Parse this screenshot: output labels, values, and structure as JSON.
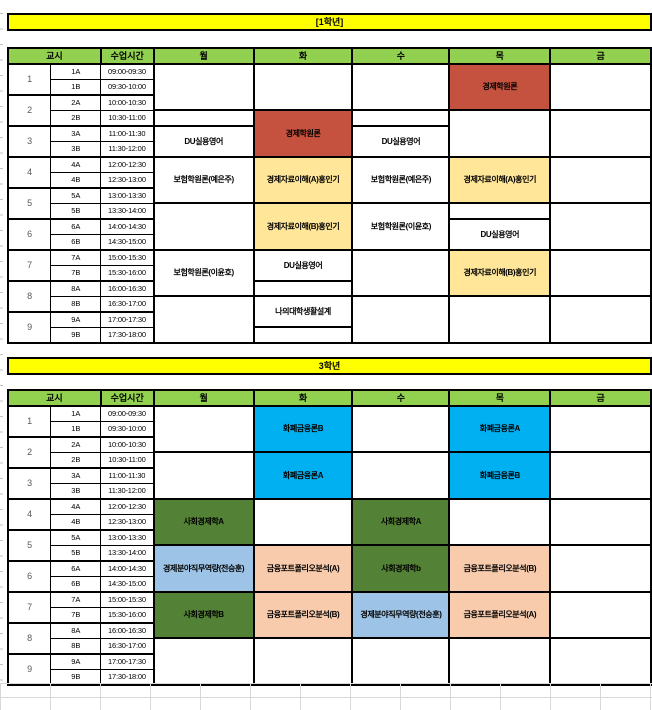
{
  "colors": {
    "banner_yellow": "#FFFF00",
    "header_green": "#92D050",
    "red": "#C5523E",
    "light_yellow": "#FFE699",
    "cyan": "#00B0F0",
    "dark_green": "#538135",
    "light_blue": "#9DC3E6",
    "peach": "#F8CBAD",
    "gridline_gray": "#D9D9D9"
  },
  "banners": {
    "grade1": "[1학년]",
    "grade3": "3학년"
  },
  "headers": {
    "period": "교시",
    "time": "수업시간",
    "days": [
      "월",
      "화",
      "수",
      "목",
      "금"
    ]
  },
  "rows": [
    {
      "period": "1",
      "code": "1A",
      "time": "09:00-09:30"
    },
    {
      "period": "",
      "code": "1B",
      "time": "09:30-10:00"
    },
    {
      "period": "2",
      "code": "2A",
      "time": "10:00-10:30"
    },
    {
      "period": "",
      "code": "2B",
      "time": "10:30-11:00"
    },
    {
      "period": "3",
      "code": "3A",
      "time": "11:00-11:30"
    },
    {
      "period": "",
      "code": "3B",
      "time": "11:30-12:00"
    },
    {
      "period": "4",
      "code": "4A",
      "time": "12:00-12:30"
    },
    {
      "period": "",
      "code": "4B",
      "time": "12:30-13:00"
    },
    {
      "period": "5",
      "code": "5A",
      "time": "13:00-13:30"
    },
    {
      "period": "",
      "code": "5B",
      "time": "13:30-14:00"
    },
    {
      "period": "6",
      "code": "6A",
      "time": "14:00-14:30"
    },
    {
      "period": "",
      "code": "6B",
      "time": "14:30-15:00"
    },
    {
      "period": "7",
      "code": "7A",
      "time": "15:00-15:30"
    },
    {
      "period": "",
      "code": "7B",
      "time": "15:30-16:00"
    },
    {
      "period": "8",
      "code": "8A",
      "time": "16:00-16:30"
    },
    {
      "period": "",
      "code": "8B",
      "time": "16:30-17:00"
    },
    {
      "period": "9",
      "code": "9A",
      "time": "17:00-17:30"
    },
    {
      "period": "",
      "code": "9B",
      "time": "17:30-18:00"
    }
  ],
  "grade1_schedule": {
    "월": [
      {
        "span": 3,
        "label": ""
      },
      {
        "span": 1,
        "label": ""
      },
      {
        "span": 2,
        "label": "DU실용영어"
      },
      {
        "span": 3,
        "label": "보험학원론(예은주)"
      },
      {
        "span": 3,
        "label": ""
      },
      {
        "span": 3,
        "label": "보험학원론(이윤호)"
      },
      {
        "span": 3,
        "label": ""
      }
    ],
    "화": [
      {
        "span": 3,
        "label": ""
      },
      {
        "span": 3,
        "label": "경제학원론",
        "color": "red"
      },
      {
        "span": 3,
        "label": "경제자료이해(A)홍인기",
        "color": "light_yellow"
      },
      {
        "span": 3,
        "label": "경제자료이해(B)홍인기",
        "color": "light_yellow"
      },
      {
        "span": 2,
        "label": "DU실용영어"
      },
      {
        "span": 1,
        "label": ""
      },
      {
        "span": 2,
        "label": "나의대학생활설계"
      },
      {
        "span": 1,
        "label": ""
      }
    ],
    "수": [
      {
        "span": 3,
        "label": ""
      },
      {
        "span": 1,
        "label": ""
      },
      {
        "span": 2,
        "label": "DU실용영어"
      },
      {
        "span": 3,
        "label": "보험학원론(예은주)"
      },
      {
        "span": 3,
        "label": "보험학원론(이윤호)"
      },
      {
        "span": 3,
        "label": ""
      },
      {
        "span": 3,
        "label": ""
      }
    ],
    "목": [
      {
        "span": 3,
        "label": "경제학원론",
        "color": "red"
      },
      {
        "span": 3,
        "label": ""
      },
      {
        "span": 3,
        "label": "경제자료이해(A)홍인기",
        "color": "light_yellow"
      },
      {
        "span": 1,
        "label": ""
      },
      {
        "span": 2,
        "label": "DU실용영어"
      },
      {
        "span": 3,
        "label": "경제자료이해(B)홍인기",
        "color": "light_yellow"
      },
      {
        "span": 3,
        "label": ""
      }
    ],
    "금": [
      {
        "span": 3,
        "label": ""
      },
      {
        "span": 3,
        "label": ""
      },
      {
        "span": 3,
        "label": ""
      },
      {
        "span": 3,
        "label": ""
      },
      {
        "span": 3,
        "label": ""
      },
      {
        "span": 3,
        "label": ""
      }
    ]
  },
  "grade3_schedule": {
    "월": [
      {
        "span": 3,
        "label": ""
      },
      {
        "span": 3,
        "label": ""
      },
      {
        "span": 3,
        "label": "사회경제학A",
        "color": "dark_green"
      },
      {
        "span": 3,
        "label": "경제분야직무역량(전승훈)",
        "color": "light_blue"
      },
      {
        "span": 3,
        "label": "사회경제학B",
        "color": "dark_green"
      },
      {
        "span": 3,
        "label": ""
      }
    ],
    "화": [
      {
        "span": 3,
        "label": "화폐금융론B",
        "color": "cyan"
      },
      {
        "span": 3,
        "label": "화폐금융론A",
        "color": "cyan"
      },
      {
        "span": 3,
        "label": ""
      },
      {
        "span": 3,
        "label": "금융포트폴리오분석(A)",
        "color": "peach"
      },
      {
        "span": 3,
        "label": "금융포트폴리오분석(B)",
        "color": "peach"
      },
      {
        "span": 3,
        "label": ""
      }
    ],
    "수": [
      {
        "span": 3,
        "label": ""
      },
      {
        "span": 3,
        "label": ""
      },
      {
        "span": 3,
        "label": "사회경제학A",
        "color": "dark_green"
      },
      {
        "span": 3,
        "label": "사회경제학b",
        "color": "dark_green"
      },
      {
        "span": 3,
        "label": "경제분야직무역량(전승훈)",
        "color": "light_blue"
      },
      {
        "span": 3,
        "label": ""
      }
    ],
    "목": [
      {
        "span": 3,
        "label": "화폐금융론A",
        "color": "cyan"
      },
      {
        "span": 3,
        "label": "화폐금융론B",
        "color": "cyan"
      },
      {
        "span": 3,
        "label": ""
      },
      {
        "span": 3,
        "label": "금융포트폴리오분석(B)",
        "color": "peach"
      },
      {
        "span": 3,
        "label": "금융포트폴리오분석(A)",
        "color": "peach"
      },
      {
        "span": 3,
        "label": ""
      }
    ],
    "금": [
      {
        "span": 3,
        "label": ""
      },
      {
        "span": 3,
        "label": ""
      },
      {
        "span": 3,
        "label": ""
      },
      {
        "span": 3,
        "label": ""
      },
      {
        "span": 3,
        "label": ""
      },
      {
        "span": 3,
        "label": ""
      }
    ]
  }
}
